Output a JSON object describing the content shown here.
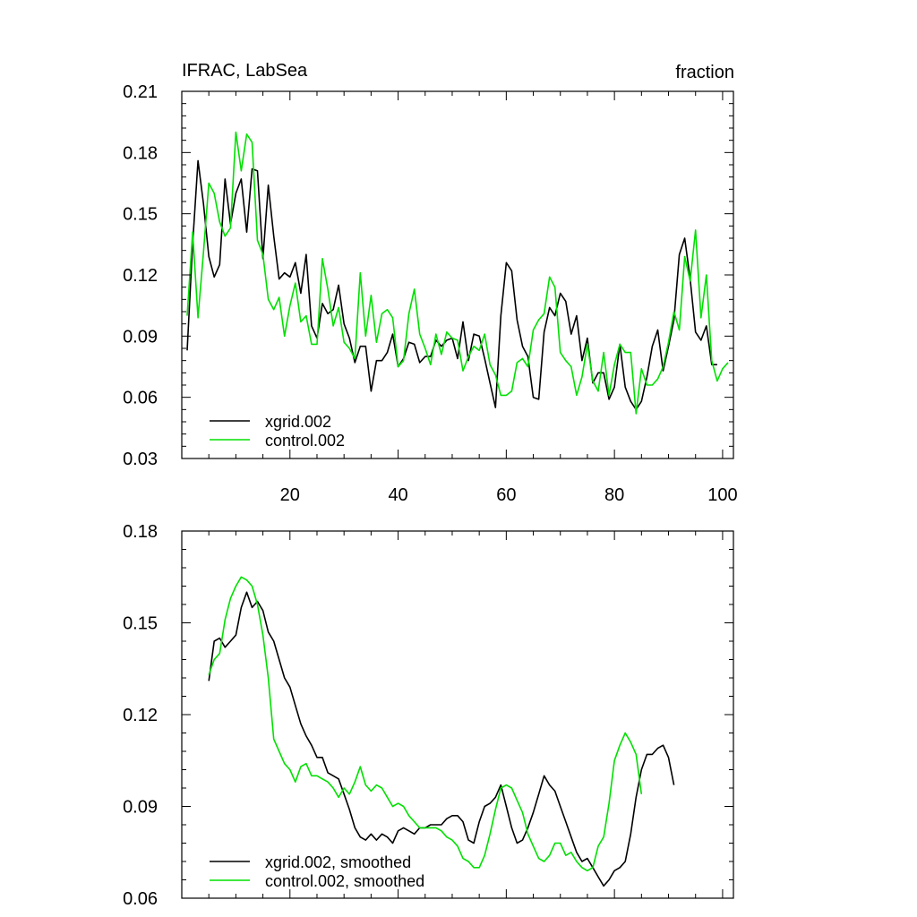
{
  "colors": {
    "xgrid": "#000000",
    "control": "#00e000"
  },
  "chart_data": [
    {
      "type": "line",
      "title": "IFRAC, LabSea",
      "units": "fraction",
      "xlim": [
        0,
        102
      ],
      "ylim": [
        0.03,
        0.21
      ],
      "xticks": [
        20,
        40,
        60,
        80,
        100
      ],
      "xtick_labels": [
        "20",
        "40",
        "60",
        "80",
        "100"
      ],
      "yticks": [
        0.03,
        0.06,
        0.09,
        0.12,
        0.15,
        0.18,
        0.21
      ],
      "ytick_labels": [
        "0.03",
        "0.06",
        "0.09",
        "0.12",
        "0.15",
        "0.18",
        "0.21"
      ],
      "legend_position": "bottom-left",
      "x_start": 1,
      "series": [
        {
          "name": "xgrid.002",
          "color": "#000000",
          "values": [
            0.083,
            0.135,
            0.176,
            0.155,
            0.129,
            0.119,
            0.125,
            0.167,
            0.145,
            0.16,
            0.167,
            0.141,
            0.172,
            0.171,
            0.128,
            0.164,
            0.139,
            0.118,
            0.121,
            0.119,
            0.126,
            0.111,
            0.13,
            0.095,
            0.089,
            0.106,
            0.101,
            0.103,
            0.115,
            0.096,
            0.089,
            0.077,
            0.085,
            0.085,
            0.063,
            0.078,
            0.078,
            0.082,
            0.091,
            0.075,
            0.079,
            0.087,
            0.086,
            0.077,
            0.08,
            0.08,
            0.088,
            0.085,
            0.088,
            0.089,
            0.079,
            0.097,
            0.078,
            0.091,
            0.09,
            0.079,
            0.067,
            0.055,
            0.1,
            0.126,
            0.122,
            0.098,
            0.085,
            0.08,
            0.06,
            0.059,
            0.092,
            0.104,
            0.1,
            0.111,
            0.107,
            0.091,
            0.1,
            0.078,
            0.089,
            0.067,
            0.072,
            0.072,
            0.059,
            0.065,
            0.086,
            0.065,
            0.058,
            0.054,
            0.058,
            0.07,
            0.085,
            0.093,
            0.073,
            0.085,
            0.098,
            0.13,
            0.138,
            0.118,
            0.092,
            0.088,
            0.095,
            0.076,
            0.076
          ]
        },
        {
          "name": "control.002",
          "color": "#00e000",
          "values": [
            0.1,
            0.141,
            0.099,
            0.131,
            0.165,
            0.16,
            0.146,
            0.139,
            0.143,
            0.19,
            0.171,
            0.189,
            0.185,
            0.137,
            0.13,
            0.108,
            0.103,
            0.109,
            0.09,
            0.105,
            0.116,
            0.097,
            0.1,
            0.086,
            0.086,
            0.128,
            0.113,
            0.095,
            0.104,
            0.087,
            0.084,
            0.079,
            0.121,
            0.09,
            0.11,
            0.087,
            0.101,
            0.103,
            0.099,
            0.075,
            0.078,
            0.101,
            0.113,
            0.091,
            0.084,
            0.076,
            0.091,
            0.081,
            0.092,
            0.089,
            0.088,
            0.073,
            0.08,
            0.085,
            0.083,
            0.091,
            0.076,
            0.071,
            0.061,
            0.061,
            0.063,
            0.077,
            0.079,
            0.075,
            0.093,
            0.098,
            0.101,
            0.119,
            0.114,
            0.082,
            0.078,
            0.075,
            0.061,
            0.07,
            0.086,
            0.068,
            0.063,
            0.082,
            0.061,
            0.076,
            0.086,
            0.082,
            0.082,
            0.052,
            0.074,
            0.066,
            0.066,
            0.069,
            0.075,
            0.087,
            0.102,
            0.093,
            0.129,
            0.117,
            0.142,
            0.099,
            0.12,
            0.078,
            0.068,
            0.074,
            0.077
          ]
        }
      ]
    },
    {
      "type": "line",
      "xlim": [
        0,
        102
      ],
      "ylim": [
        0.06,
        0.18
      ],
      "xticks": [
        20,
        40,
        60,
        80,
        100
      ],
      "yticks": [
        0.06,
        0.09,
        0.12,
        0.15,
        0.18
      ],
      "ytick_labels": [
        "0.06",
        "0.09",
        "0.12",
        "0.15",
        "0.18"
      ],
      "legend_position": "bottom-left",
      "x_start": 5,
      "series": [
        {
          "name": "xgrid.002, smoothed",
          "color": "#000000",
          "values": [
            0.131,
            0.144,
            0.145,
            0.142,
            0.144,
            0.146,
            0.155,
            0.16,
            0.155,
            0.157,
            0.154,
            0.147,
            0.144,
            0.138,
            0.132,
            0.129,
            0.123,
            0.117,
            0.113,
            0.11,
            0.106,
            0.106,
            0.101,
            0.1,
            0.099,
            0.094,
            0.089,
            0.083,
            0.08,
            0.079,
            0.081,
            0.079,
            0.081,
            0.08,
            0.078,
            0.082,
            0.083,
            0.082,
            0.081,
            0.083,
            0.083,
            0.084,
            0.084,
            0.084,
            0.086,
            0.087,
            0.087,
            0.085,
            0.079,
            0.078,
            0.085,
            0.09,
            0.091,
            0.093,
            0.097,
            0.09,
            0.083,
            0.078,
            0.079,
            0.083,
            0.088,
            0.094,
            0.1,
            0.097,
            0.095,
            0.09,
            0.085,
            0.08,
            0.075,
            0.072,
            0.073,
            0.07,
            0.067,
            0.064,
            0.066,
            0.069,
            0.07,
            0.072,
            0.081,
            0.093,
            0.102,
            0.107,
            0.107,
            0.109,
            0.11,
            0.106,
            0.097
          ]
        },
        {
          "name": "control.002, smoothed",
          "color": "#00e000",
          "values": [
            0.133,
            0.138,
            0.14,
            0.151,
            0.158,
            0.162,
            0.165,
            0.164,
            0.162,
            0.156,
            0.146,
            0.132,
            0.112,
            0.108,
            0.104,
            0.102,
            0.098,
            0.103,
            0.104,
            0.1,
            0.1,
            0.099,
            0.098,
            0.096,
            0.093,
            0.096,
            0.094,
            0.098,
            0.103,
            0.097,
            0.095,
            0.097,
            0.096,
            0.093,
            0.09,
            0.091,
            0.09,
            0.087,
            0.085,
            0.083,
            0.083,
            0.083,
            0.083,
            0.082,
            0.08,
            0.079,
            0.077,
            0.073,
            0.072,
            0.07,
            0.07,
            0.074,
            0.081,
            0.089,
            0.096,
            0.097,
            0.096,
            0.092,
            0.088,
            0.081,
            0.077,
            0.073,
            0.072,
            0.074,
            0.078,
            0.078,
            0.074,
            0.075,
            0.072,
            0.07,
            0.069,
            0.07,
            0.077,
            0.08,
            0.091,
            0.105,
            0.11,
            0.114,
            0.111,
            0.107,
            0.094
          ]
        }
      ]
    }
  ]
}
